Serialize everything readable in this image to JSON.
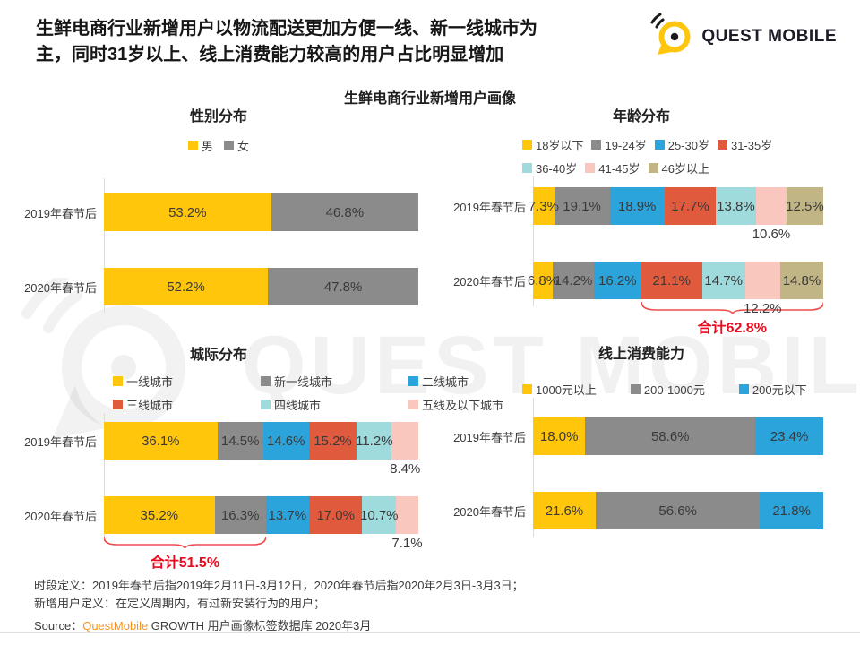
{
  "page": {
    "header_title_line1": "生鲜电商行业新增用户以物流配送更加方便一线、新一线城市为",
    "header_title_line2": "主，同时31岁以上、线上消费能力较高的用户占比明显增加",
    "logo_text": "QUEST MOBILE",
    "main_title": "生鲜电商行业新增用户画像",
    "watermark_text": "QUEST MOBILE",
    "footer_line1": "时段定义：2019年春节后指2019年2月11日-3月12日，2020年春节后指2020年2月3日-3月3日；",
    "footer_line2": "新增用户定义：在定义周期内，有过新安装行为的用户；",
    "source_prefix": "Source：",
    "source_brand": "QuestMobile",
    "source_suffix": " GROWTH 用户画像标签数据库 2020年3月"
  },
  "colors": {
    "yellow": "#FFC60B",
    "gray": "#8B8B8B",
    "blue": "#2BA3DB",
    "orange_red": "#E05A3E",
    "teal": "#9FDADC",
    "pink": "#F9C7BD",
    "khaki": "#C1B485",
    "bracket_red": "#F04B4B",
    "total_red": "#E80A1E",
    "brand_orange": "#F7941E",
    "logo_yellow": "#FFC60E"
  },
  "chart_data": [
    {
      "type": "bar",
      "stacked": true,
      "orientation": "horizontal",
      "title": "性别分布",
      "unit": "%",
      "xlim": [
        0,
        100
      ],
      "grid": false,
      "legend_position": "top-center",
      "categories": [
        "2019年春节后",
        "2020年春节后"
      ],
      "series": [
        {
          "name": "男",
          "color": "#FFC60B",
          "values": [
            53.2,
            52.2
          ]
        },
        {
          "name": "女",
          "color": "#8B8B8B",
          "values": [
            46.8,
            47.8
          ]
        }
      ],
      "layout": {
        "title_mt": 8,
        "legend_mt": 11,
        "rows_mt": 27,
        "rows_pt": 17,
        "label_w": 108,
        "pad_r": 13,
        "legend": {
          "align": "center",
          "gap": 12
        }
      }
    },
    {
      "type": "bar",
      "stacked": true,
      "orientation": "horizontal",
      "title": "年龄分布",
      "unit": "%",
      "xlim": [
        0,
        100
      ],
      "grid": false,
      "legend_position": "top-left",
      "categories": [
        "2019年春节后",
        "2020年春节后"
      ],
      "series": [
        {
          "name": "18岁以下",
          "color": "#FFC60B",
          "values": [
            7.3,
            6.8
          ]
        },
        {
          "name": "19-24岁",
          "color": "#8B8B8B",
          "values": [
            19.1,
            14.2
          ]
        },
        {
          "name": "25-30岁",
          "color": "#2BA3DB",
          "values": [
            18.9,
            16.2
          ]
        },
        {
          "name": "31-35岁",
          "color": "#E05A3E",
          "values": [
            17.7,
            21.1
          ]
        },
        {
          "name": "36-40岁",
          "color": "#9FDADC",
          "values": [
            13.8,
            14.7
          ]
        },
        {
          "name": "41-45岁",
          "color": "#F9C7BD",
          "values": [
            10.6,
            12.2
          ],
          "label_below": true
        },
        {
          "name": "46岁以上",
          "color": "#C1B485",
          "values": [
            12.5,
            14.8
          ]
        }
      ],
      "bracket": {
        "row": 1,
        "start_pct": 37.2,
        "end_pct": 100,
        "label": "合计62.8%"
      },
      "layout": {
        "title_mt": 8,
        "legend_mt": 10,
        "rows_mt": 0,
        "rows_pt": 12,
        "label_w": 115,
        "pad_r": 33,
        "legend": {
          "align": "left",
          "ml": 103,
          "gap": 9,
          "wrap": 4
        }
      }
    },
    {
      "type": "bar",
      "stacked": true,
      "orientation": "horizontal",
      "title": "城际分布",
      "unit": "%",
      "xlim": [
        0,
        100
      ],
      "grid": false,
      "legend_position": "top-left",
      "categories": [
        "2019年春节后",
        "2020年春节后"
      ],
      "series": [
        {
          "name": "一线城市",
          "color": "#FFC60B",
          "values": [
            36.1,
            35.2
          ]
        },
        {
          "name": "新一线城市",
          "color": "#8B8B8B",
          "values": [
            14.5,
            16.3
          ]
        },
        {
          "name": "二线城市",
          "color": "#2BA3DB",
          "values": [
            14.6,
            13.7
          ]
        },
        {
          "name": "三线城市",
          "color": "#E05A3E",
          "values": [
            15.2,
            17.0
          ]
        },
        {
          "name": "四线城市",
          "color": "#9FDADC",
          "values": [
            11.2,
            10.7
          ]
        },
        {
          "name": "五线及以下城市",
          "color": "#F9C7BD",
          "values": [
            8.4,
            7.1
          ],
          "label_below": true
        }
      ],
      "bracket": {
        "row": 1,
        "start_pct": 0,
        "end_pct": 51.5,
        "label": "合计51.5%"
      },
      "layout": {
        "title_mt": 14,
        "legend_mt": 8,
        "rows_mt": 0,
        "rows_pt": 10,
        "label_w": 108,
        "pad_r": 13,
        "legend": {
          "align": "left",
          "ml": 118,
          "gap": 0,
          "wrap": 3,
          "col": 165
        }
      }
    },
    {
      "type": "bar",
      "stacked": true,
      "orientation": "horizontal",
      "title": "线上消费能力",
      "unit": "%",
      "xlim": [
        0,
        100
      ],
      "grid": false,
      "legend_position": "top-left",
      "categories": [
        "2019年春节后",
        "2020年春节后"
      ],
      "series": [
        {
          "name": "1000元以上",
          "color": "#FFC60B",
          "values": [
            18.0,
            21.6
          ]
        },
        {
          "name": "200-1000元",
          "color": "#8B8B8B",
          "values": [
            58.6,
            56.6
          ]
        },
        {
          "name": "200元以下",
          "color": "#2BA3DB",
          "values": [
            23.4,
            21.8
          ]
        }
      ],
      "layout": {
        "title_mt": 13,
        "legend_mt": 18,
        "rows_mt": 0,
        "rows_pt": 22,
        "label_w": 115,
        "pad_r": 33,
        "legend": {
          "align": "left",
          "ml": 103,
          "gap": 38
        }
      }
    }
  ]
}
